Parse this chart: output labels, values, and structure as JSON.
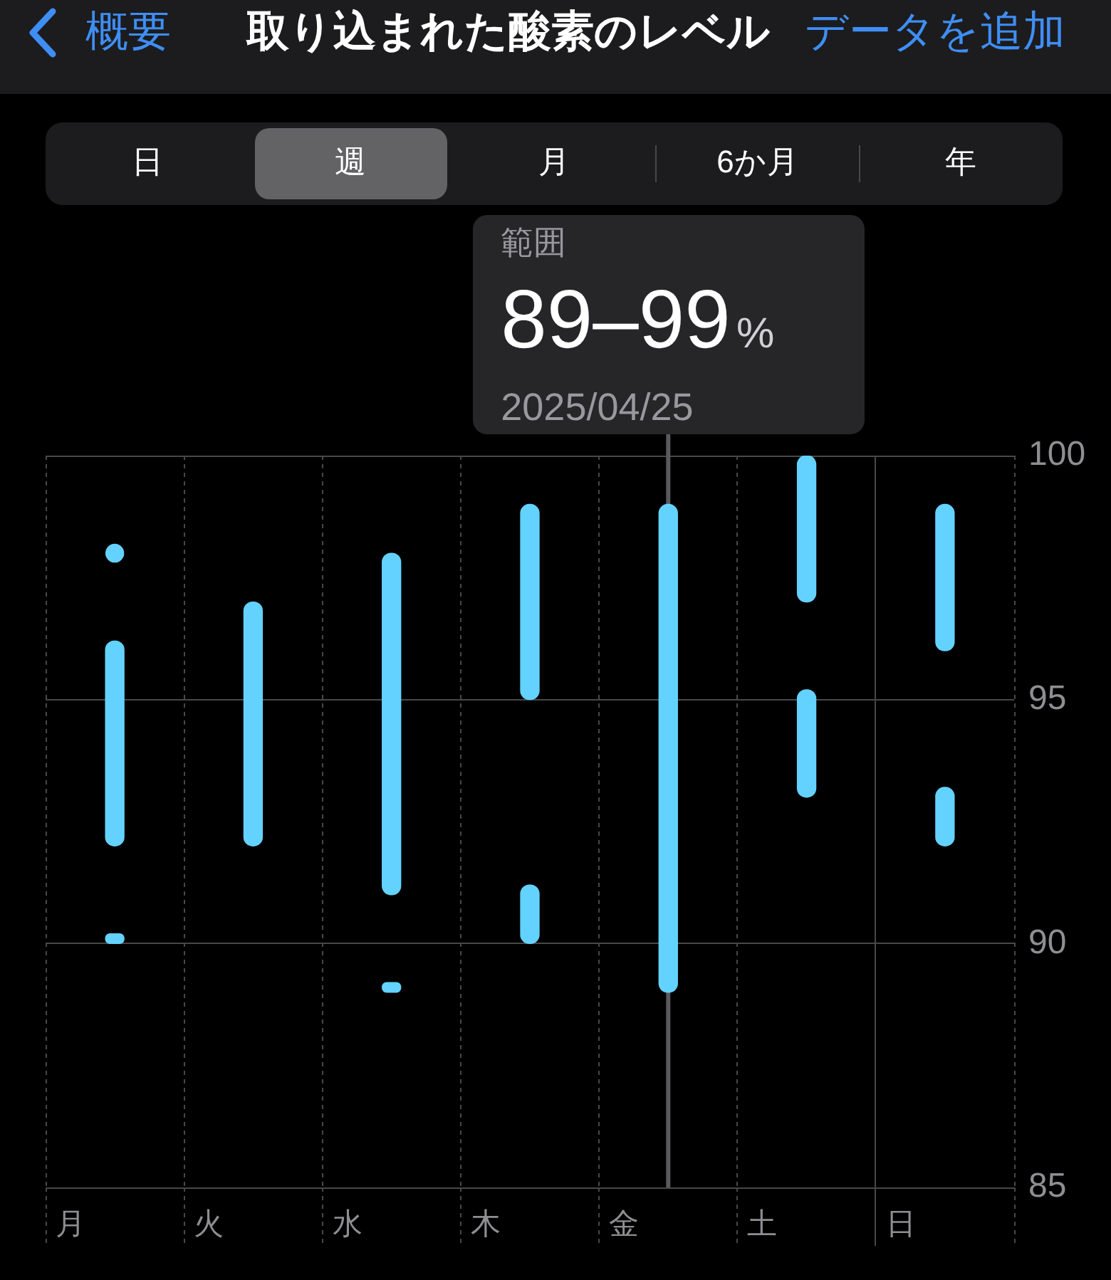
{
  "chart_data": {
    "type": "bar",
    "title": "取り込まれた酸素のレベル",
    "categories": [
      "月",
      "火",
      "水",
      "木",
      "金",
      "土",
      "日"
    ],
    "series": [
      {
        "color": "#64d2ff",
        "base": [
          92,
          92,
          91,
          95,
          89,
          97,
          96
        ],
        "values": [
          4.2,
          5,
          7,
          4,
          10,
          3,
          3
        ]
      },
      {
        "color": "#64d2ff",
        "base": [
          90,
          null,
          89,
          90,
          null,
          93,
          92
        ],
        "values": [
          0.2,
          null,
          0.2,
          1.2,
          null,
          2.2,
          1.2
        ]
      },
      {
        "type": "scatter",
        "color": "#64d2ff",
        "x": [
          "月"
        ],
        "values": [
          98
        ]
      }
    ],
    "marker": "circle",
    "ylim": [
      85,
      100
    ],
    "yticks": [
      85,
      90,
      95,
      100
    ],
    "grid": true,
    "ref_lines": [
      {
        "axis": "x",
        "value": "金",
        "color": "#5a5a5e"
      }
    ],
    "annotations": [
      "概要",
      "データを追加",
      "日",
      "週",
      "月",
      "6か月",
      "年",
      "範囲",
      "89–99%",
      "2025/04/25"
    ]
  }
}
